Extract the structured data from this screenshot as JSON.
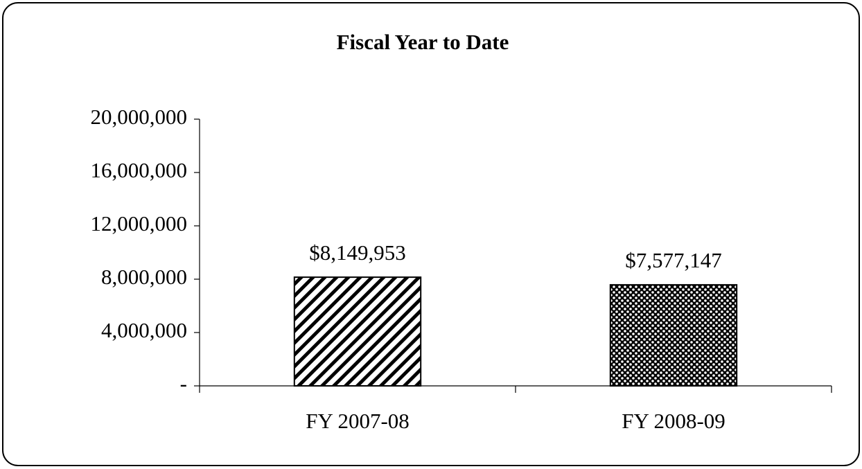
{
  "chart_data": {
    "type": "bar",
    "title": "Fiscal Year to Date",
    "categories": [
      "FY 2007-08",
      "FY 2008-09"
    ],
    "values": [
      8149953,
      7577147
    ],
    "value_labels": [
      "$8,149,953",
      "$7,577,147"
    ],
    "color": "#000000",
    "ylim": [
      0,
      20000000
    ],
    "yticks": [
      {
        "value": 0,
        "label": "-"
      },
      {
        "value": 4000000,
        "label": "4,000,000"
      },
      {
        "value": 8000000,
        "label": "8,000,000"
      },
      {
        "value": 12000000,
        "label": "12,000,000"
      },
      {
        "value": 16000000,
        "label": "16,000,000"
      },
      {
        "value": 20000000,
        "label": "20,000,000"
      }
    ],
    "grid": false
  }
}
